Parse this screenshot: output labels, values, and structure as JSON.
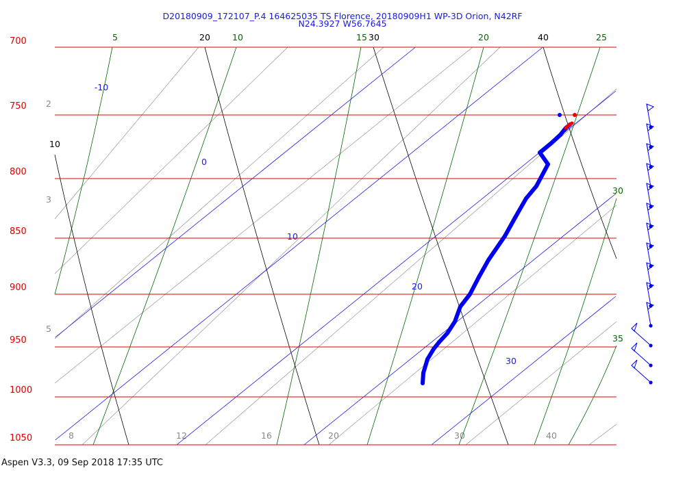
{
  "header": {
    "title_line1": "D20180909_172107_P.4 164625035 TS Florence, 20180909H1 WP-3D Orion, N42RF",
    "title_line2": "N24.3927 W56.7645"
  },
  "footer": {
    "text": "Aspen V3.3, 09 Sep 2018  17:35 UTC"
  },
  "colors": {
    "isobar": "#dd0000",
    "isotherm": "#1a1ae6",
    "dry_adiabat": "#000000",
    "moist_adiabat": "#006600",
    "mixing_ratio": "#888888",
    "profile": "#0000ee",
    "top_point": "#ee0000"
  },
  "chart_data": {
    "type": "scatter",
    "chart_kind": "skew-T log-P diagram",
    "pressure_levels": [
      {
        "p": 700,
        "label": "700"
      },
      {
        "p": 750,
        "label": "750"
      },
      {
        "p": 800,
        "label": "800"
      },
      {
        "p": 850,
        "label": "850"
      },
      {
        "p": 900,
        "label": "900"
      },
      {
        "p": 950,
        "label": "950"
      },
      {
        "p": 1000,
        "label": "1000"
      },
      {
        "p": 1050,
        "label": "1050"
      }
    ],
    "isotherm_labels": [
      "-10",
      "0",
      "10",
      "20",
      "30"
    ],
    "dry_adiabat_labels": [
      "10",
      "20",
      "30",
      "40"
    ],
    "moist_adiabat_labels": [
      "5",
      "10",
      "15",
      "20",
      "25",
      "30",
      "35"
    ],
    "mixing_ratio_labels": [
      "2",
      "3",
      "5",
      "8",
      "12",
      "16",
      "20",
      "30",
      "40"
    ],
    "temperature_profile": {
      "p": [
        993,
        985,
        975,
        965,
        955,
        945,
        935,
        925,
        910,
        890,
        870,
        850,
        830,
        810,
        800,
        792,
        786,
        780,
        775,
        770,
        765
      ],
      "temp": [
        24.5,
        24.7,
        25.1,
        25.6,
        26.2,
        27.3,
        28.0,
        28.4,
        29.0,
        29.6,
        30.3,
        30.9,
        31.6,
        32.3,
        32.7,
        33.2,
        33.0,
        33.4,
        34.2,
        34.6,
        35.0
      ]
    },
    "top_points": [
      {
        "p": 753,
        "temp": 33.8,
        "series": "blue-dot"
      },
      {
        "p": 753,
        "temp": 35.6,
        "series": "red-dot"
      }
    ],
    "red_segment": {
      "p": [
        770,
        765,
        762
      ],
      "temp": [
        34.6,
        35.0,
        35.2
      ]
    },
    "wind_barbs": [
      {
        "p": 765,
        "dir": 60,
        "kt": 10
      },
      {
        "p": 780,
        "dir": 60,
        "kt": 10
      },
      {
        "p": 795,
        "dir": 60,
        "kt": 10
      },
      {
        "p": 810,
        "dir": 60,
        "kt": 10
      },
      {
        "p": 825,
        "dir": 60,
        "kt": 10
      },
      {
        "p": 840,
        "dir": 60,
        "kt": 10
      },
      {
        "p": 855,
        "dir": 60,
        "kt": 10
      },
      {
        "p": 870,
        "dir": 60,
        "kt": 10
      },
      {
        "p": 885,
        "dir": 60,
        "kt": 10
      },
      {
        "p": 900,
        "dir": 60,
        "kt": 10
      },
      {
        "p": 920,
        "dir": 70,
        "kt": 10
      },
      {
        "p": 940,
        "dir": 75,
        "kt": 10
      },
      {
        "p": 955,
        "dir": 80,
        "kt": 10
      },
      {
        "p": 975,
        "dir": 85,
        "kt": 10
      },
      {
        "p": 990,
        "dir": 90,
        "kt": 10
      }
    ]
  }
}
